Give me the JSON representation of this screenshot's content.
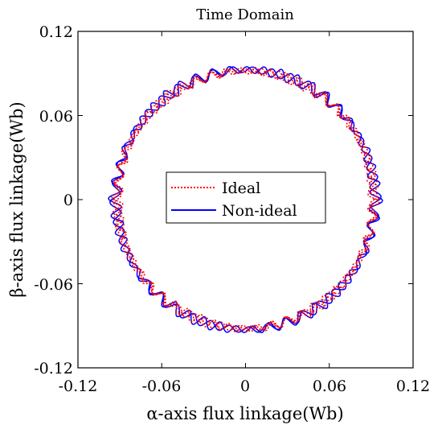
{
  "chart_data": {
    "type": "line",
    "title": "Time Domain",
    "xlabel": "α-axis flux linkage(Wb)",
    "ylabel": "β-axis flux linkage(Wb)",
    "xlim": [
      -0.12,
      0.12
    ],
    "ylim": [
      -0.12,
      0.12
    ],
    "x_ticks": [
      "-0.12",
      "-0.06",
      "0",
      "0.06",
      "0.12"
    ],
    "y_ticks": [
      "0.12",
      "0.06",
      "0",
      "-0.06",
      "-0.12"
    ],
    "grid": false,
    "legend_position": "center",
    "series": [
      {
        "name": "Ideal",
        "color": "#ff0000",
        "style": "dotted",
        "shape": "ripple-circle",
        "radius_approx": 0.092,
        "points": [
          [
            0.092,
            0
          ],
          [
            0.0904,
            0.0172
          ],
          [
            0.0858,
            0.034
          ],
          [
            0.0778,
            0.0492
          ],
          [
            0.068,
            0.0622
          ],
          [
            0.0552,
            0.0737
          ],
          [
            0.0404,
            0.0826
          ],
          [
            0.0246,
            0.0886
          ],
          [
            0.0082,
            0.0918
          ],
          [
            -0.0082,
            0.0918
          ],
          [
            -0.0246,
            0.0886
          ],
          [
            -0.0404,
            0.0826
          ],
          [
            -0.0552,
            0.0737
          ],
          [
            -0.068,
            0.0622
          ],
          [
            -0.0778,
            0.0492
          ],
          [
            -0.0858,
            0.034
          ],
          [
            -0.0904,
            0.0172
          ],
          [
            -0.092,
            0
          ],
          [
            -0.0904,
            -0.0172
          ],
          [
            -0.0858,
            -0.034
          ],
          [
            -0.0778,
            -0.0492
          ],
          [
            -0.068,
            -0.0622
          ],
          [
            -0.0552,
            -0.0737
          ],
          [
            -0.0404,
            -0.0826
          ],
          [
            -0.0246,
            -0.0886
          ],
          [
            -0.0082,
            -0.0918
          ],
          [
            0.0082,
            -0.0918
          ],
          [
            0.0246,
            -0.0886
          ],
          [
            0.0404,
            -0.0826
          ],
          [
            0.0552,
            -0.0737
          ],
          [
            0.068,
            -0.0622
          ],
          [
            0.0778,
            -0.0492
          ],
          [
            0.0858,
            -0.034
          ],
          [
            0.0904,
            -0.0172
          ],
          [
            0.092,
            0
          ]
        ]
      },
      {
        "name": "Non-ideal",
        "color": "#0000ff",
        "style": "solid",
        "shape": "ripple-circle",
        "radius_approx": 0.093,
        "points": [
          [
            0.094,
            0
          ],
          [
            0.0912,
            0.0175
          ],
          [
            0.0866,
            0.0343
          ],
          [
            0.0788,
            0.0496
          ],
          [
            0.0686,
            0.0628
          ],
          [
            0.0556,
            0.0744
          ],
          [
            0.0408,
            0.0834
          ],
          [
            0.0248,
            0.0894
          ],
          [
            0.0083,
            0.0926
          ],
          [
            -0.0083,
            0.0926
          ],
          [
            -0.0248,
            0.0894
          ],
          [
            -0.0408,
            0.0834
          ],
          [
            -0.0556,
            0.0744
          ],
          [
            -0.0686,
            0.0628
          ],
          [
            -0.0788,
            0.0496
          ],
          [
            -0.0866,
            0.0343
          ],
          [
            -0.0912,
            0.0175
          ],
          [
            -0.094,
            0
          ],
          [
            -0.0912,
            -0.0175
          ],
          [
            -0.0866,
            -0.0343
          ],
          [
            -0.0788,
            -0.0496
          ],
          [
            -0.0686,
            -0.0628
          ],
          [
            -0.0556,
            -0.0744
          ],
          [
            -0.0408,
            -0.0834
          ],
          [
            -0.0248,
            -0.0894
          ],
          [
            -0.0083,
            -0.0926
          ],
          [
            0.0083,
            -0.0926
          ],
          [
            0.0248,
            -0.0894
          ],
          [
            0.0408,
            -0.0834
          ],
          [
            0.0556,
            -0.0744
          ],
          [
            0.0686,
            -0.0628
          ],
          [
            0.0788,
            -0.0496
          ],
          [
            0.0866,
            -0.0343
          ],
          [
            0.0912,
            -0.0175
          ],
          [
            0.094,
            0
          ]
        ]
      }
    ]
  }
}
